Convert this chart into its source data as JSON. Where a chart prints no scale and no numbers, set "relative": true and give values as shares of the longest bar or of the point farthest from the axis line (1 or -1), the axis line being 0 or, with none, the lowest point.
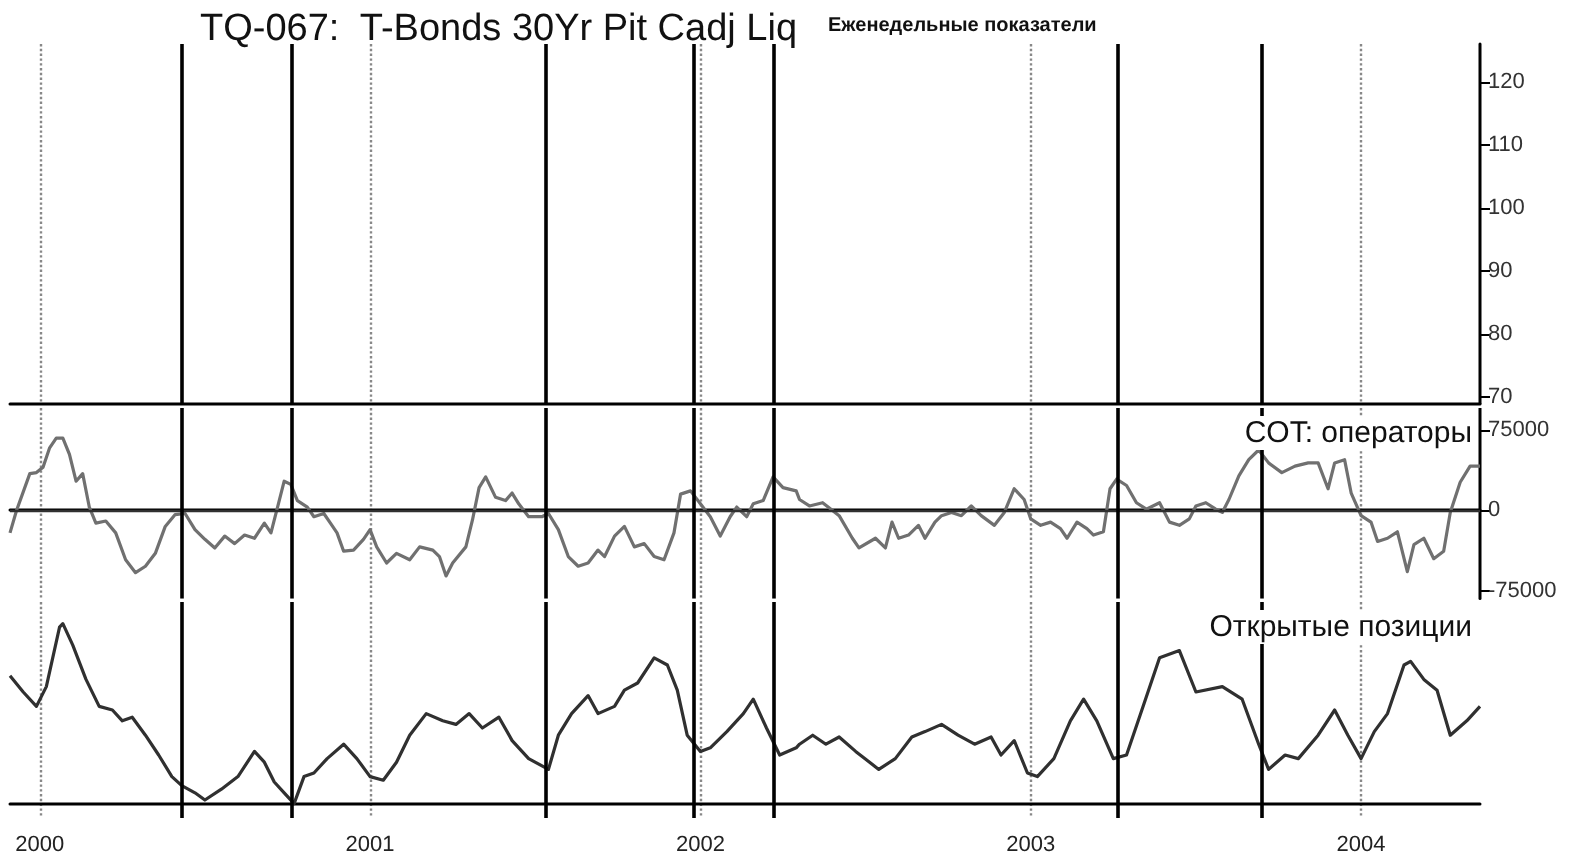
{
  "chart_data": [
    {
      "type": "line",
      "title": "TQ-067:  T-Bonds 30Yr Pit Cadj Liq",
      "annotations": [
        "Еженедельные показатели"
      ],
      "xlim": [
        1999.91,
        2004.36
      ],
      "xticks": [
        2000,
        2001,
        2002,
        2003,
        2004
      ],
      "ylim": [
        69,
        126
      ],
      "yticks": [
        70,
        80,
        90,
        100,
        110,
        120
      ],
      "tick_labels": "y",
      "grid": "x",
      "ref_lines": [
        {
          "axis": "x",
          "value": 2000.43,
          "color": "#000000"
        },
        {
          "axis": "x",
          "value": 2000.76,
          "color": "#000000"
        },
        {
          "axis": "x",
          "value": 2001.53,
          "color": "#000000"
        },
        {
          "axis": "x",
          "value": 2001.98,
          "color": "#000000"
        },
        {
          "axis": "x",
          "value": 2002.22,
          "color": "#000000"
        },
        {
          "axis": "x",
          "value": 2003.26,
          "color": "#000000"
        },
        {
          "axis": "x",
          "value": 2003.7,
          "color": "#000000"
        }
      ]
    },
    {
      "type": "line",
      "xlim": [
        1999.91,
        2004.36
      ],
      "xticks": [
        2000,
        2001,
        2002,
        2003,
        2004
      ],
      "ylim": [
        -82000,
        95000
      ],
      "yticks": [
        -75000,
        0,
        75000
      ],
      "tick_labels": "y",
      "grid": "x",
      "ref_lines": [
        {
          "axis": "y",
          "value": 0,
          "color": "#303030"
        },
        {
          "axis": "x",
          "value": 2000.43,
          "color": "#000000"
        },
        {
          "axis": "x",
          "value": 2000.76,
          "color": "#000000"
        },
        {
          "axis": "x",
          "value": 2001.53,
          "color": "#000000"
        },
        {
          "axis": "x",
          "value": 2001.98,
          "color": "#000000"
        },
        {
          "axis": "x",
          "value": 2002.22,
          "color": "#000000"
        },
        {
          "axis": "x",
          "value": 2003.26,
          "color": "#000000"
        },
        {
          "axis": "x",
          "value": 2003.7,
          "color": "#000000"
        }
      ],
      "series": [
        {
          "name": "COT: операторы",
          "color": "#707070",
          "x": [
            1999.91,
            1999.93,
            1999.97,
            1999.99,
            2000.01,
            2000.03,
            2000.05,
            2000.07,
            2000.09,
            2000.11,
            2000.13,
            2000.15,
            2000.17,
            2000.2,
            2000.23,
            2000.26,
            2000.29,
            2000.32,
            2000.35,
            2000.38,
            2000.41,
            2000.44,
            2000.47,
            2000.5,
            2000.53,
            2000.56,
            2000.59,
            2000.62,
            2000.65,
            2000.68,
            2000.7,
            2000.72,
            2000.74,
            2000.76,
            2000.78,
            2000.81,
            2000.83,
            2000.86,
            2000.88,
            2000.9,
            2000.92,
            2000.95,
            2000.98,
            2001.0,
            2001.02,
            2001.05,
            2001.08,
            2001.12,
            2001.15,
            2001.19,
            2001.21,
            2001.23,
            2001.25,
            2001.29,
            2001.31,
            2001.33,
            2001.35,
            2001.38,
            2001.41,
            2001.43,
            2001.45,
            2001.48,
            2001.52,
            2001.54,
            2001.57,
            2001.6,
            2001.63,
            2001.66,
            2001.69,
            2001.71,
            2001.74,
            2001.77,
            2001.8,
            2001.83,
            2001.86,
            2001.89,
            2001.92,
            2001.94,
            2001.97,
            2002.0,
            2002.03,
            2002.06,
            2002.09,
            2002.11,
            2002.14,
            2002.16,
            2002.19,
            2002.22,
            2002.25,
            2002.29,
            2002.3,
            2002.33,
            2002.37,
            2002.42,
            2002.46,
            2002.48,
            2002.53,
            2002.56,
            2002.58,
            2002.6,
            2002.63,
            2002.66,
            2002.68,
            2002.71,
            2002.73,
            2002.76,
            2002.79,
            2002.82,
            2002.85,
            2002.89,
            2002.92,
            2002.95,
            2002.98,
            2003.0,
            2003.03,
            2003.06,
            2003.09,
            2003.11,
            2003.14,
            2003.17,
            2003.19,
            2003.22,
            2003.24,
            2003.26,
            2003.29,
            2003.32,
            2003.35,
            2003.39,
            2003.42,
            2003.45,
            2003.48,
            2003.5,
            2003.53,
            2003.56,
            2003.58,
            2003.6,
            2003.63,
            2003.66,
            2003.69,
            2003.72,
            2003.76,
            2003.8,
            2003.84,
            2003.87,
            2003.9,
            2003.92,
            2003.95,
            2003.97,
            2004.0,
            2004.03,
            2004.05,
            2004.08,
            2004.11,
            2004.14,
            2004.16,
            2004.19,
            2004.22,
            2004.25,
            2004.27,
            2004.3,
            2004.33,
            2004.36
          ],
          "values": [
            -21000,
            0,
            34000,
            35000,
            40000,
            58000,
            67000,
            67000,
            52000,
            27000,
            34000,
            3000,
            -12000,
            -10000,
            -21000,
            -46000,
            -58000,
            -52000,
            -40000,
            -15000,
            -4000,
            -3000,
            -18000,
            -27000,
            -35000,
            -24000,
            -31000,
            -23000,
            -26000,
            -12000,
            -21000,
            3000,
            27000,
            24000,
            9000,
            3000,
            -6000,
            -3000,
            -12000,
            -21000,
            -38000,
            -37000,
            -27000,
            -18000,
            -34000,
            -49000,
            -40000,
            -46000,
            -34000,
            -37000,
            -43000,
            -61000,
            -49000,
            -34000,
            -9000,
            21000,
            31000,
            12000,
            9000,
            16000,
            6000,
            -6000,
            -6000,
            -3000,
            -18000,
            -43000,
            -52000,
            -49000,
            -37000,
            -43000,
            -24000,
            -15000,
            -34000,
            -31000,
            -43000,
            -46000,
            -21000,
            15000,
            18000,
            6000,
            -6000,
            -24000,
            -6000,
            3000,
            -6000,
            6000,
            9000,
            31000,
            21000,
            18000,
            10000,
            4000,
            7000,
            -5000,
            -26000,
            -35000,
            -26000,
            -35000,
            -11000,
            -26000,
            -23000,
            -14000,
            -26000,
            -11000,
            -5000,
            -2000,
            -5000,
            4000,
            -5000,
            -14000,
            -2000,
            20000,
            10000,
            -8000,
            -14000,
            -11000,
            -17000,
            -26000,
            -11000,
            -17000,
            -23000,
            -20000,
            20000,
            29000,
            23000,
            7000,
            1000,
            7000,
            -11000,
            -14000,
            -8000,
            4000,
            7000,
            1000,
            -2000,
            10000,
            32000,
            47000,
            56000,
            44000,
            35000,
            41000,
            44000,
            44000,
            20000,
            44000,
            47000,
            16000,
            -5000,
            -11000,
            -29000,
            -26000,
            -20000,
            -57000,
            -32000,
            -26000,
            -45000,
            -38000,
            -2000,
            26000,
            41000,
            41000
          ]
        }
      ]
    },
    {
      "type": "line",
      "relative": true,
      "xlim": [
        1999.91,
        2004.36
      ],
      "xticks": [
        {
          "value": 2000,
          "label": "2000"
        },
        {
          "value": 2001,
          "label": "2001"
        },
        {
          "value": 2002,
          "label": "2002"
        },
        {
          "value": 2003,
          "label": "2003"
        },
        {
          "value": 2004,
          "label": "2004"
        }
      ],
      "tick_labels": "x",
      "grid": "x",
      "ref_lines": [
        {
          "axis": "x",
          "value": 2000.43,
          "color": "#000000"
        },
        {
          "axis": "x",
          "value": 2000.76,
          "color": "#000000"
        },
        {
          "axis": "x",
          "value": 2001.53,
          "color": "#000000"
        },
        {
          "axis": "x",
          "value": 2001.98,
          "color": "#000000"
        },
        {
          "axis": "x",
          "value": 2002.22,
          "color": "#000000"
        },
        {
          "axis": "x",
          "value": 2003.26,
          "color": "#000000"
        },
        {
          "axis": "x",
          "value": 2003.7,
          "color": "#000000"
        }
      ],
      "series": [
        {
          "name": "Открытые позиции",
          "color": "#303030",
          "x": [
            1999.91,
            1999.95,
            1999.99,
            2000.02,
            2000.06,
            2000.07,
            2000.1,
            2000.14,
            2000.18,
            2000.22,
            2000.25,
            2000.28,
            2000.32,
            2000.36,
            2000.4,
            2000.43,
            2000.47,
            2000.5,
            2000.55,
            2000.6,
            2000.65,
            2000.68,
            2000.71,
            2000.74,
            2000.77,
            2000.8,
            2000.83,
            2000.87,
            2000.92,
            2000.96,
            2001.0,
            2001.04,
            2001.08,
            2001.12,
            2001.17,
            2001.22,
            2001.26,
            2001.3,
            2001.34,
            2001.39,
            2001.43,
            2001.48,
            2001.54,
            2001.57,
            2001.61,
            2001.66,
            2001.69,
            2001.74,
            2001.77,
            2001.81,
            2001.86,
            2001.9,
            2001.93,
            2001.96,
            2002.0,
            2002.03,
            2002.08,
            2002.13,
            2002.16,
            2002.2,
            2002.24,
            2002.29,
            2002.3,
            2002.34,
            2002.38,
            2002.42,
            2002.47,
            2002.54,
            2002.59,
            2002.64,
            2002.68,
            2002.73,
            2002.78,
            2002.83,
            2002.88,
            2002.91,
            2002.95,
            2002.99,
            2003.02,
            2003.07,
            2003.12,
            2003.16,
            2003.2,
            2003.25,
            2003.29,
            2003.34,
            2003.39,
            2003.45,
            2003.5,
            2003.58,
            2003.64,
            2003.69,
            2003.72,
            2003.77,
            2003.81,
            2003.87,
            2003.92,
            2003.96,
            2004.0,
            2004.04,
            2004.08,
            2004.13,
            2004.15,
            2004.19,
            2004.23,
            2004.27,
            2004.32,
            2004.36
          ],
          "values": [
            0.71,
            0.62,
            0.54,
            0.65,
            0.98,
            1,
            0.88,
            0.69,
            0.54,
            0.52,
            0.46,
            0.48,
            0.38,
            0.27,
            0.15,
            0.1,
            0.06,
            0.02,
            0.08,
            0.15,
            0.29,
            0.23,
            0.12,
            0.06,
            0,
            0.15,
            0.17,
            0.25,
            0.33,
            0.25,
            0.15,
            0.13,
            0.23,
            0.38,
            0.5,
            0.46,
            0.44,
            0.5,
            0.42,
            0.48,
            0.35,
            0.25,
            0.19,
            0.38,
            0.5,
            0.6,
            0.5,
            0.54,
            0.63,
            0.67,
            0.81,
            0.77,
            0.63,
            0.38,
            0.29,
            0.31,
            0.4,
            0.5,
            0.58,
            0.42,
            0.27,
            0.31,
            0.33,
            0.38,
            0.33,
            0.37,
            0.29,
            0.19,
            0.25,
            0.37,
            0.4,
            0.44,
            0.38,
            0.33,
            0.37,
            0.27,
            0.35,
            0.17,
            0.15,
            0.25,
            0.46,
            0.58,
            0.46,
            0.25,
            0.27,
            0.54,
            0.81,
            0.85,
            0.62,
            0.65,
            0.58,
            0.33,
            0.19,
            0.27,
            0.25,
            0.38,
            0.52,
            0.38,
            0.25,
            0.4,
            0.5,
            0.77,
            0.79,
            0.69,
            0.63,
            0.38,
            0.46,
            0.54
          ]
        }
      ]
    }
  ]
}
